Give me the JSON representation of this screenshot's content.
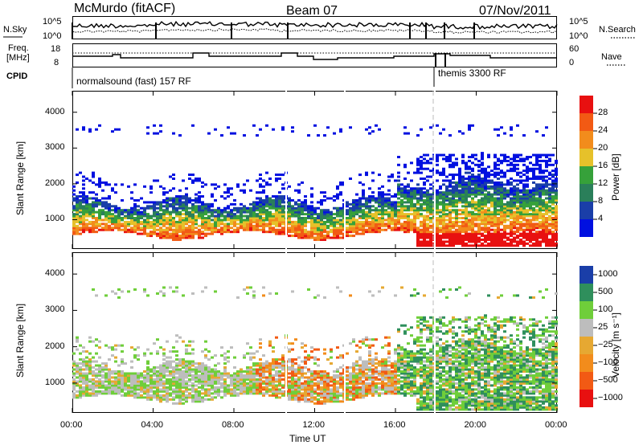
{
  "header": {
    "station": "McMurdo (fitACF)",
    "beam": "Beam 07",
    "date": "07/Nov/2011"
  },
  "noise_panel": {
    "left_label": "N.Sky",
    "left_ticks": [
      "10^5",
      "10^0"
    ],
    "right_ticks": [
      "10^5",
      "10^0"
    ],
    "right_label": "N.Search"
  },
  "freq_panel": {
    "left_label_1": "Freq.",
    "left_label_2": "[MHz]",
    "left_ticks": [
      "18",
      "8"
    ],
    "right_ticks": [
      "60",
      "0"
    ],
    "right_label": "Nave"
  },
  "cpid": {
    "label": "CPID",
    "mode_1": "normalsound (fast) 157 RF",
    "mode_2": "themis 3300 RF"
  },
  "colors": {
    "power": [
      "#0010e0",
      "#1a3ea8",
      "#2a7f5a",
      "#36a13a",
      "#e6c12a",
      "#f28c1c",
      "#f25a14",
      "#e81010"
    ],
    "velocity": [
      "#e81010",
      "#f25a14",
      "#f28c1c",
      "#e6a832",
      "#bdbdbd",
      "#6fce3a",
      "#2f8f5c",
      "#1a3ea8"
    ]
  },
  "chart_data": [
    {
      "type": "heatmap",
      "title": "",
      "xlabel": "Time UT",
      "ylabel": "Slant Range [km]",
      "xlim": [
        0,
        24
      ],
      "ylim": [
        180,
        4600
      ],
      "x_ticks": [
        "00:00",
        "04:00",
        "08:00",
        "12:00",
        "16:00",
        "20:00",
        "00:00"
      ],
      "y_ticks": [
        "1000",
        "2000",
        "3000",
        "4000"
      ],
      "colorbar_label": "Power [dB]",
      "colorbar_ticks": [
        "28",
        "24",
        "20",
        "16",
        "12",
        "8",
        "4"
      ],
      "colorbar_range": [
        0,
        32
      ]
    },
    {
      "type": "heatmap",
      "title": "",
      "xlabel": "Time UT",
      "ylabel": "Slant Range [km]",
      "xlim": [
        0,
        24
      ],
      "ylim": [
        180,
        4600
      ],
      "x_ticks": [
        "00:00",
        "04:00",
        "08:00",
        "12:00",
        "16:00",
        "20:00",
        "00:00"
      ],
      "y_ticks": [
        "1000",
        "2000",
        "3000",
        "4000"
      ],
      "colorbar_label": "Velocity [m s⁻¹]",
      "colorbar_ticks": [
        "1000",
        "500",
        "100",
        "25",
        "−25",
        "−100",
        "−500",
        "−1000"
      ]
    }
  ]
}
